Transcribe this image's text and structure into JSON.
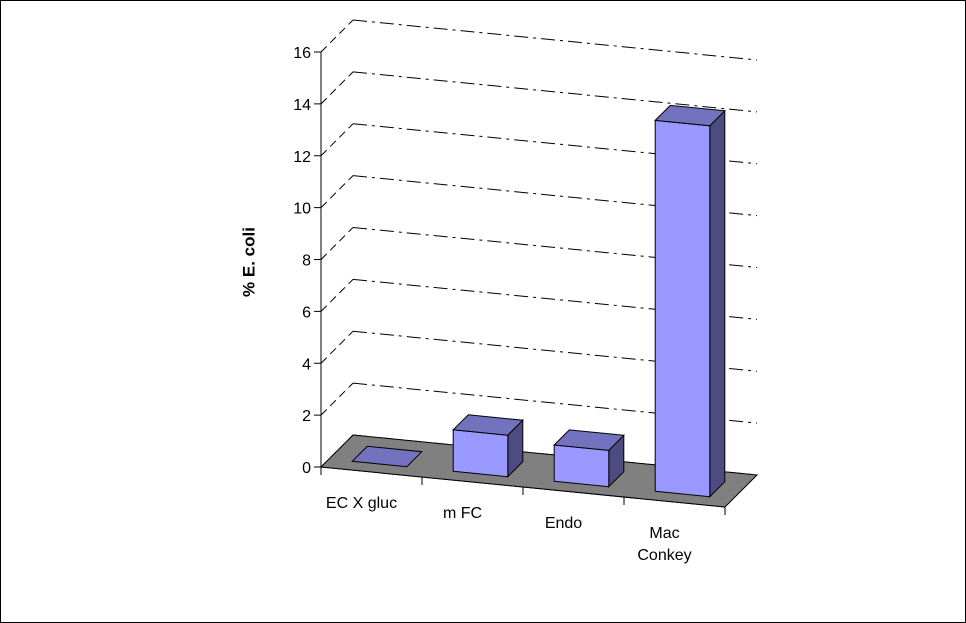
{
  "chart_data": {
    "type": "bar",
    "title": "",
    "xlabel": "",
    "ylabel": "% E. coli",
    "categories": [
      "EC X gluc",
      "m FC",
      "Endo",
      "Mac Conkey"
    ],
    "category_lines": [
      [
        "EC X gluc"
      ],
      [
        "m FC"
      ],
      [
        "Endo"
      ],
      [
        "Mac",
        "Conkey"
      ]
    ],
    "values": [
      0,
      1.6,
      1.4,
      14.3
    ],
    "yticks": [
      "0",
      "2",
      "4",
      "6",
      "8",
      "10",
      "12",
      "14",
      "16"
    ],
    "ylim": [
      0,
      16
    ],
    "grid": true,
    "three_d": true,
    "colors": {
      "bar_front": "#9999ff",
      "bar_side": "#4c4c80",
      "bar_top": "#7272bf",
      "floor": "#808080",
      "grid": "#000000"
    }
  }
}
